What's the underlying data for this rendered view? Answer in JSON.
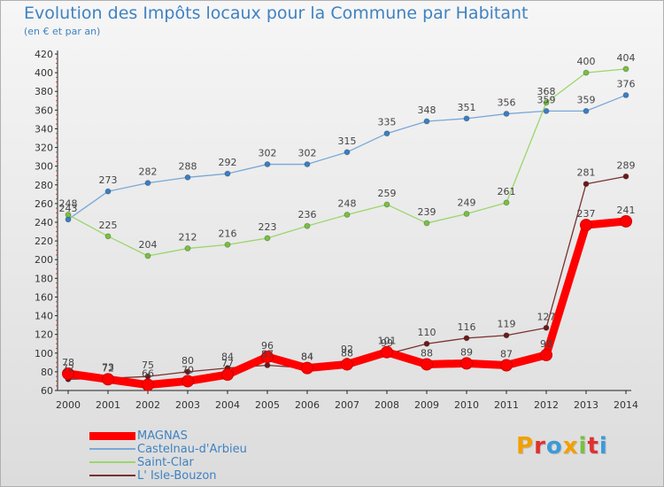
{
  "header": {
    "title": "Evolution des Impôts locaux pour la Commune par Habitant",
    "subtitle": "(en € et par an)"
  },
  "logo": {
    "text": "Proxiti",
    "letters": [
      {
        "ch": "P",
        "color": "#f2a000"
      },
      {
        "ch": "r",
        "color": "#e03030"
      },
      {
        "ch": "o",
        "color": "#3a9bd9"
      },
      {
        "ch": "x",
        "color": "#f2a000"
      },
      {
        "ch": "i",
        "color": "#79c142"
      },
      {
        "ch": "t",
        "color": "#e03030"
      },
      {
        "ch": "i",
        "color": "#3a9bd9"
      }
    ]
  },
  "chart_data": {
    "type": "line",
    "title": "Evolution des Impôts locaux pour la Commune par Habitant",
    "subtitle": "(en € et par an)",
    "x": [
      2000,
      2001,
      2002,
      2003,
      2004,
      2005,
      2006,
      2007,
      2008,
      2009,
      2010,
      2011,
      2012,
      2013,
      2014
    ],
    "ylim": [
      60,
      420
    ],
    "yticks": [
      60,
      80,
      100,
      120,
      140,
      160,
      180,
      200,
      220,
      240,
      260,
      280,
      300,
      320,
      340,
      360,
      380,
      400,
      420
    ],
    "grid": false,
    "legend_position": "bottom-left",
    "series": [
      {
        "name": "MAGNAS",
        "color": "#ff0000",
        "marker": "#ff0000",
        "values": [
          78,
          72,
          66,
          70,
          77,
          96,
          84,
          88,
          101,
          88,
          89,
          87,
          98,
          237,
          241
        ]
      },
      {
        "name": "Castelnau-d'Arbieu",
        "color": "#78a8d8",
        "marker": "#3a7fc4",
        "values": [
          243,
          273,
          282,
          288,
          292,
          302,
          302,
          315,
          335,
          348,
          351,
          356,
          359,
          359,
          376
        ]
      },
      {
        "name": "Saint-Clar",
        "color": "#9ad66a",
        "marker": "#77c140",
        "values": [
          248,
          225,
          204,
          212,
          216,
          223,
          236,
          248,
          259,
          239,
          249,
          261,
          368,
          400,
          404
        ]
      },
      {
        "name": "L' Isle-Bouzon",
        "color": "#7a3030",
        "marker": "#6a1a1a",
        "values": [
          72,
          73,
          75,
          80,
          84,
          87,
          84,
          92,
          99,
          110,
          116,
          119,
          127,
          281,
          289
        ]
      }
    ]
  }
}
